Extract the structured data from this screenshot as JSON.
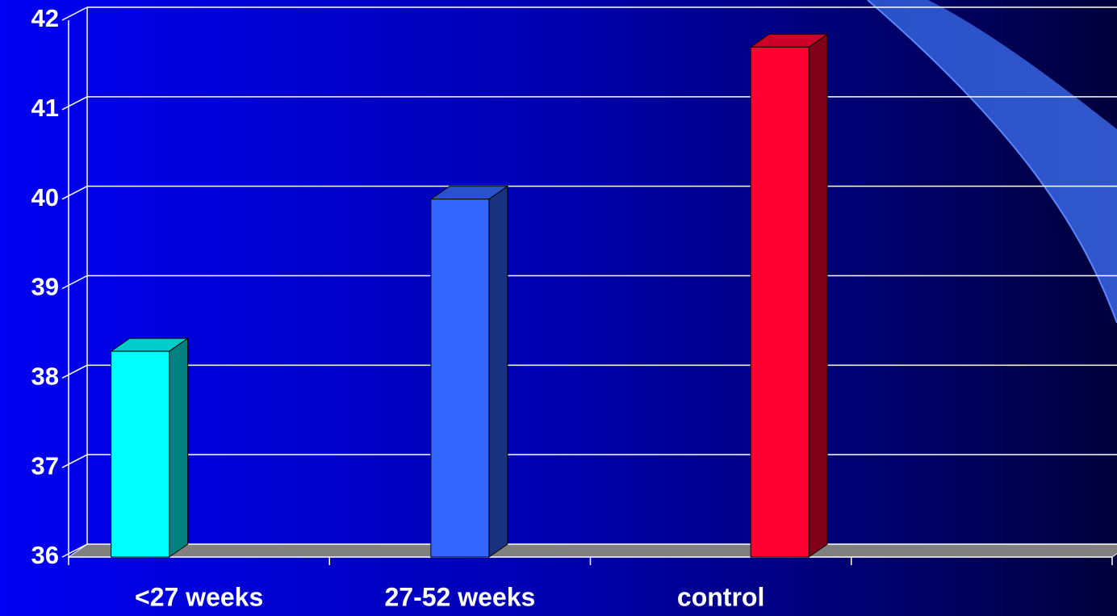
{
  "chart_data": {
    "type": "bar3d",
    "categories": [
      "<27 weeks",
      "27-52 weeks",
      "control"
    ],
    "values": [
      38.3,
      40.0,
      41.7
    ],
    "colors": [
      "#00ffff",
      "#3366ff",
      "#ff0033"
    ],
    "ylim": [
      36,
      42
    ],
    "yticks": [
      36,
      37,
      38,
      39,
      40,
      41,
      42
    ],
    "grid": true
  }
}
